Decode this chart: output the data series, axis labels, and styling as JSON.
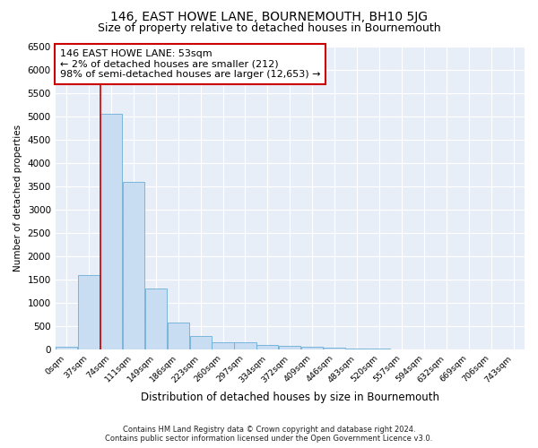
{
  "title": "146, EAST HOWE LANE, BOURNEMOUTH, BH10 5JG",
  "subtitle": "Size of property relative to detached houses in Bournemouth",
  "xlabel": "Distribution of detached houses by size in Bournemouth",
  "ylabel": "Number of detached properties",
  "footer_line1": "Contains HM Land Registry data © Crown copyright and database right 2024.",
  "footer_line2": "Contains public sector information licensed under the Open Government Licence v3.0.",
  "bins": [
    "0sqm",
    "37sqm",
    "74sqm",
    "111sqm",
    "149sqm",
    "186sqm",
    "223sqm",
    "260sqm",
    "297sqm",
    "334sqm",
    "372sqm",
    "409sqm",
    "446sqm",
    "483sqm",
    "520sqm",
    "557sqm",
    "594sqm",
    "632sqm",
    "669sqm",
    "706sqm",
    "743sqm"
  ],
  "values": [
    60,
    1600,
    5050,
    3600,
    1300,
    580,
    300,
    160,
    150,
    100,
    90,
    60,
    50,
    30,
    20,
    10,
    8,
    5,
    3,
    2,
    2
  ],
  "bar_color": "#c9ddf2",
  "bar_edge_color": "#6baed6",
  "annotation_text": "146 EAST HOWE LANE: 53sqm\n← 2% of detached houses are smaller (212)\n98% of semi-detached houses are larger (12,653) →",
  "annotation_box_color": "#ffffff",
  "annotation_box_edge": "#cc0000",
  "property_line_color": "#cc0000",
  "ylim": [
    0,
    6500
  ],
  "yticks": [
    0,
    500,
    1000,
    1500,
    2000,
    2500,
    3000,
    3500,
    4000,
    4500,
    5000,
    5500,
    6000,
    6500
  ],
  "background_color": "#e8eef8",
  "grid_color": "#ffffff",
  "title_fontsize": 10,
  "subtitle_fontsize": 9,
  "property_line_x": 1.5
}
